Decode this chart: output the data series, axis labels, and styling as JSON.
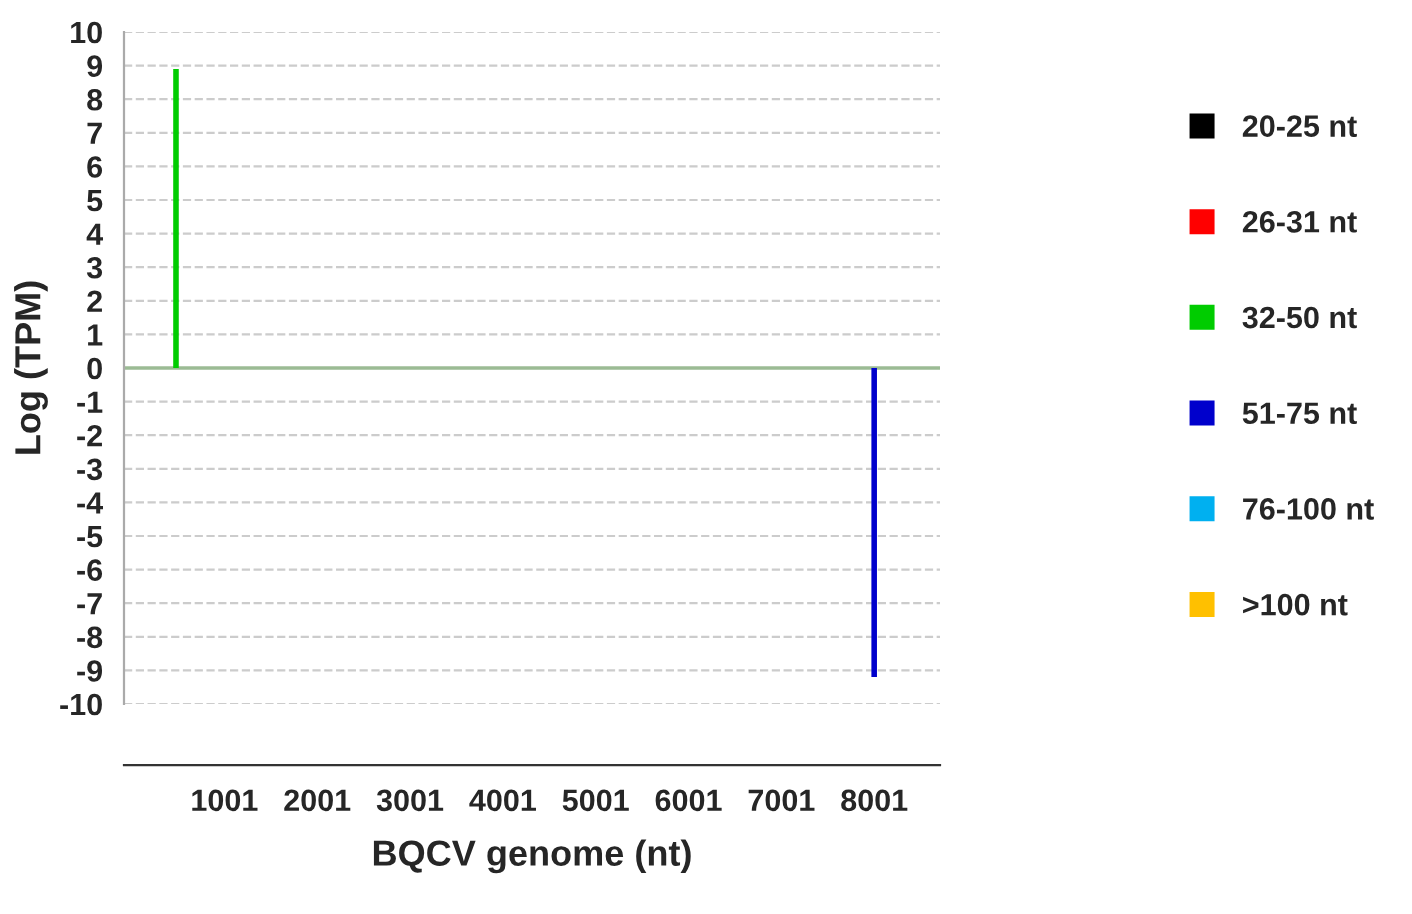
{
  "chart_data": {
    "type": "bar",
    "xlabel": "BQCV genome (nt)",
    "ylabel": "Log (TPM)",
    "x": [
      480,
      8001
    ],
    "series": [
      {
        "name": "20-25 nt",
        "color": "#000000",
        "values": [
          null,
          null
        ]
      },
      {
        "name": "26-31 nt",
        "color": "#ff0000",
        "values": [
          null,
          null
        ]
      },
      {
        "name": "32-50 nt",
        "color": "#00cc00",
        "values": [
          8.9,
          null
        ]
      },
      {
        "name": "51-75 nt",
        "color": "#0000cc",
        "values": [
          null,
          -9.2
        ]
      },
      {
        "name": "76-100 nt",
        "color": "#00b0f0",
        "values": [
          null,
          null
        ]
      },
      {
        "name": ">100 nt",
        "color": "#ffc000",
        "values": [
          null,
          null
        ]
      }
    ],
    "xlim": [
      -80,
      8710
    ],
    "xticks": [
      1001,
      2001,
      3001,
      4001,
      5001,
      6001,
      7001,
      8001
    ],
    "ylim": [
      -10,
      10
    ],
    "yticks": [
      -10,
      -9,
      -8,
      -7,
      -6,
      -5,
      -4,
      -3,
      -2,
      -1,
      0,
      1,
      2,
      3,
      4,
      5,
      6,
      7,
      8,
      9,
      10
    ],
    "ref_lines": [
      {
        "axis": "y",
        "value": 0,
        "label": null,
        "color": "#9bbb94"
      }
    ],
    "grid": "y",
    "legend": "right"
  }
}
